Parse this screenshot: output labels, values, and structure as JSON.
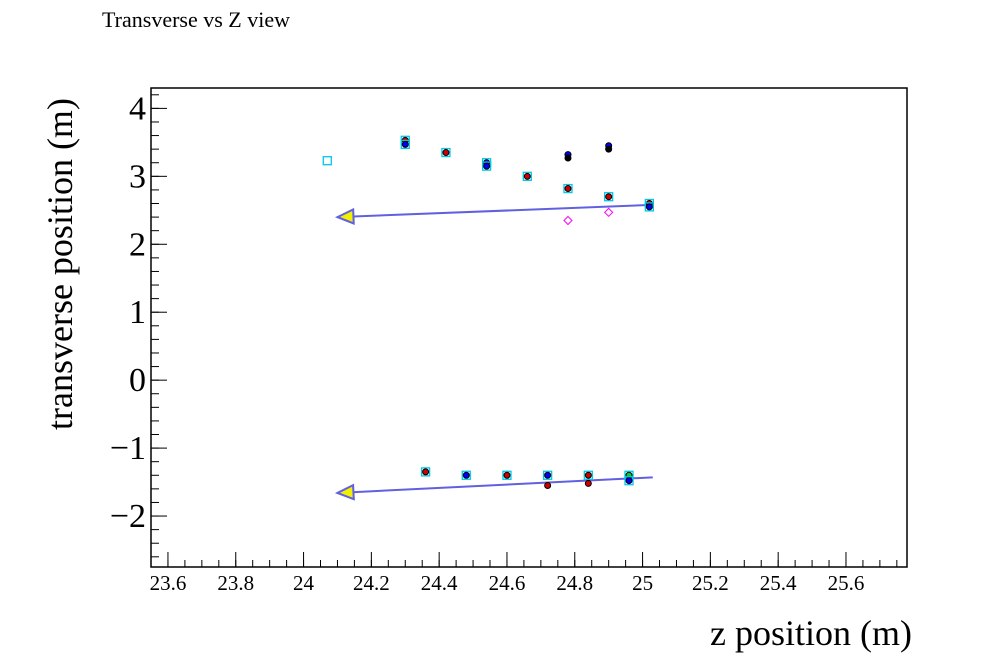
{
  "chart_data": {
    "type": "scatter",
    "title": "Transverse vs Z view",
    "xlabel": "z position (m)",
    "ylabel": "transverse position (m)",
    "xlim": [
      23.55,
      25.78
    ],
    "ylim": [
      -2.75,
      4.3
    ],
    "x_ticks": [
      "23.6",
      "23.8",
      "24",
      "24.2",
      "24.4",
      "24.6",
      "24.8",
      "25",
      "25.2",
      "25.4",
      "25.6"
    ],
    "x_tick_values": [
      23.6,
      23.8,
      24,
      24.2,
      24.4,
      24.6,
      24.8,
      25,
      25.2,
      25.4,
      25.6
    ],
    "y_ticks": [
      "4",
      "3",
      "2",
      "1",
      "0",
      "−1",
      "−2"
    ],
    "y_tick_values": [
      4,
      3,
      2,
      1,
      0,
      -1,
      -2
    ],
    "grid": false,
    "colors": {
      "hit_box": "#00c8e6",
      "hit_red": "#cc0000",
      "hit_blue": "#0000ff",
      "hit_green": "#00cc44",
      "hit_black": "#000000",
      "diamond": "#ff00ff",
      "track": "#6060e0",
      "arrow_fill": "#f0f000"
    },
    "hits": [
      {
        "x": 24.07,
        "y": 3.23,
        "marker": "box"
      },
      {
        "x": 24.3,
        "y": 3.53,
        "marker": "box-dot",
        "dot": "red"
      },
      {
        "x": 24.3,
        "y": 3.47,
        "marker": "box-dot",
        "dot": "blue"
      },
      {
        "x": 24.42,
        "y": 3.35,
        "marker": "box-dot",
        "dot": "red"
      },
      {
        "x": 24.54,
        "y": 3.2,
        "marker": "box-dot",
        "dot": "blue"
      },
      {
        "x": 24.54,
        "y": 3.15,
        "marker": "box-dot",
        "dot": "blue"
      },
      {
        "x": 24.66,
        "y": 3.0,
        "marker": "box-dot",
        "dot": "red"
      },
      {
        "x": 24.78,
        "y": 3.32,
        "marker": "dot",
        "dot": "blue"
      },
      {
        "x": 24.78,
        "y": 3.27,
        "marker": "dot",
        "dot": "black"
      },
      {
        "x": 24.78,
        "y": 2.82,
        "marker": "box-dot",
        "dot": "red"
      },
      {
        "x": 24.9,
        "y": 3.45,
        "marker": "dot",
        "dot": "blue"
      },
      {
        "x": 24.9,
        "y": 3.4,
        "marker": "dot",
        "dot": "black"
      },
      {
        "x": 24.9,
        "y": 2.7,
        "marker": "box-dot",
        "dot": "red"
      },
      {
        "x": 25.02,
        "y": 2.6,
        "marker": "box-dot",
        "dot": "red"
      },
      {
        "x": 25.02,
        "y": 2.55,
        "marker": "box-dot",
        "dot": "blue"
      },
      {
        "x": 24.78,
        "y": 2.35,
        "marker": "diamond"
      },
      {
        "x": 24.9,
        "y": 2.47,
        "marker": "diamond"
      },
      {
        "x": 24.36,
        "y": -1.35,
        "marker": "box-dot",
        "dot": "red"
      },
      {
        "x": 24.48,
        "y": -1.4,
        "marker": "box-dot",
        "dot": "blue"
      },
      {
        "x": 24.6,
        "y": -1.4,
        "marker": "box-dot",
        "dot": "red"
      },
      {
        "x": 24.72,
        "y": -1.4,
        "marker": "box-dot",
        "dot": "blue"
      },
      {
        "x": 24.72,
        "y": -1.55,
        "marker": "dot",
        "dot": "red"
      },
      {
        "x": 24.84,
        "y": -1.4,
        "marker": "box-dot",
        "dot": "red"
      },
      {
        "x": 24.84,
        "y": -1.52,
        "marker": "dot",
        "dot": "red"
      },
      {
        "x": 24.96,
        "y": -1.4,
        "marker": "box-dot",
        "dot": "green"
      },
      {
        "x": 24.96,
        "y": -1.48,
        "marker": "box-dot",
        "dot": "blue"
      }
    ],
    "tracks": [
      {
        "x1": 25.03,
        "y1": 2.58,
        "x2": 24.1,
        "y2": 2.4
      },
      {
        "x1": 25.03,
        "y1": -1.43,
        "x2": 24.1,
        "y2": -1.66
      }
    ]
  }
}
